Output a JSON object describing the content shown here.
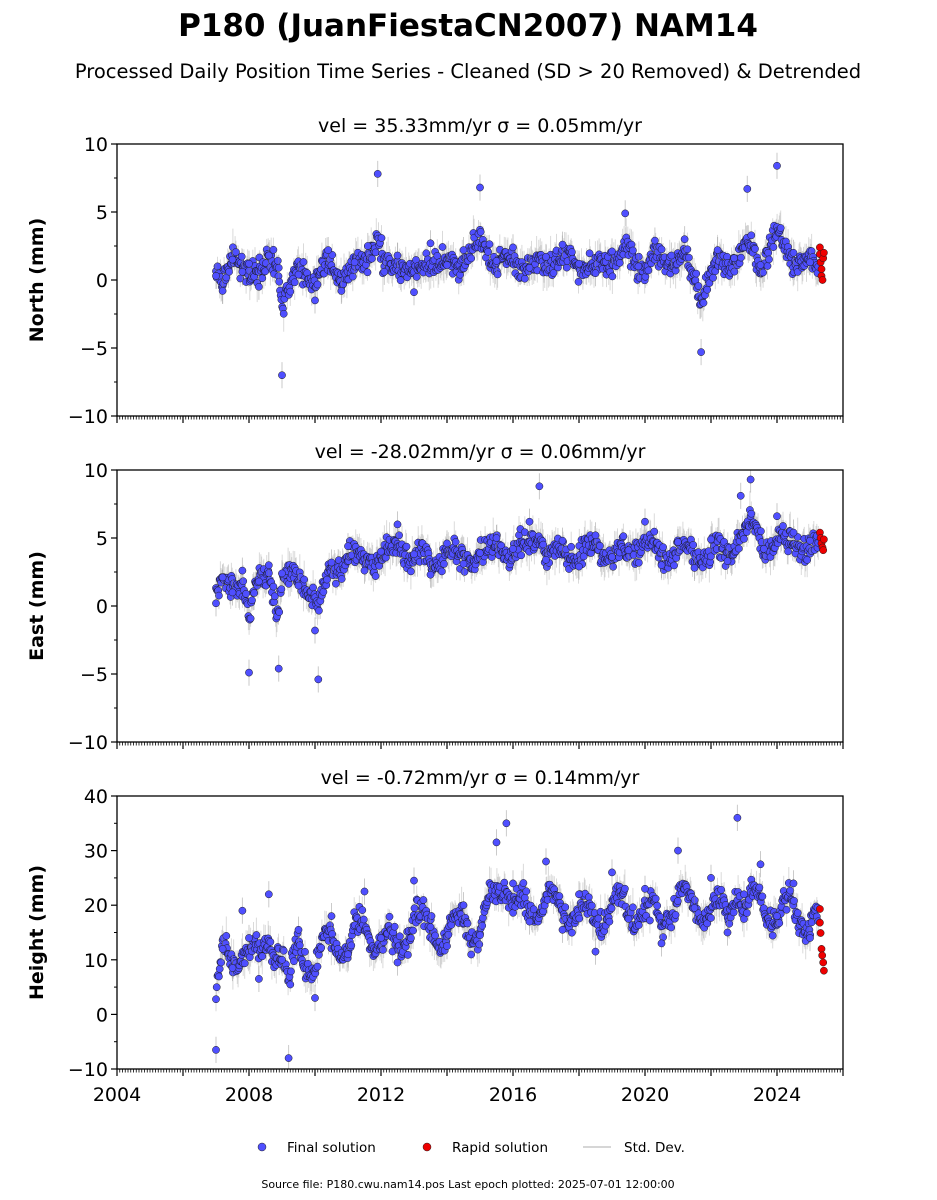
{
  "title": "P180 (JuanFiestaCN2007) NAM14",
  "subtitle": "Processed Daily Position Time Series - Cleaned (SD > 20 Removed) & Detrended",
  "legend": {
    "final": "Final solution",
    "rapid": "Rapid solution",
    "std": "Std. Dev.",
    "placement": "bottom-center"
  },
  "footer": "Source file: P180.cwu.nam14.pos  Last epoch plotted: 2025-07-01 12:00:00",
  "colors": {
    "final": "#4f4fff",
    "rapid": "#ee0000",
    "stddev": "#b5b5b5"
  },
  "chart_data": [
    {
      "type": "scatter",
      "component": "North",
      "title": "vel = 35.33mm/yr   σ = 0.05mm/yr",
      "ylabel": "North (mm)",
      "xlim": [
        2004,
        2026
      ],
      "ylim": [
        -10,
        10
      ],
      "yticks": [
        "10",
        "5",
        "0",
        "−5",
        "−10"
      ],
      "grid": false,
      "series": [
        {
          "name": "Final solution",
          "x": [
            2007.0,
            2007.2,
            2007.5,
            2007.8,
            2008.0,
            2008.3,
            2008.6,
            2008.9,
            2009.0,
            2009.5,
            2010.0,
            2010.4,
            2010.8,
            2011.2,
            2011.6,
            2011.9,
            2012.1,
            2012.5,
            2013.0,
            2013.5,
            2014.0,
            2014.5,
            2015.0,
            2015.5,
            2016.0,
            2016.5,
            2017.0,
            2017.5,
            2018.0,
            2018.5,
            2019.0,
            2019.4,
            2019.8,
            2020.3,
            2020.8,
            2021.2,
            2021.7,
            2022.2,
            2022.7,
            2023.1,
            2023.5,
            2024.0,
            2024.5,
            2025.0
          ],
          "y": [
            0.3,
            -0.8,
            1.5,
            0.6,
            1.2,
            -0.5,
            1.8,
            0.9,
            -7.0,
            0.4,
            -1.5,
            2.2,
            -0.8,
            1.3,
            2.5,
            7.8,
            0.6,
            1.8,
            -0.9,
            2.7,
            1.1,
            2.2,
            6.8,
            1.4,
            2.4,
            0.9,
            1.7,
            2.6,
            1.2,
            0.5,
            2.1,
            4.9,
            1.0,
            2.9,
            1.8,
            3.0,
            -5.3,
            2.2,
            1.6,
            6.7,
            1.1,
            8.4,
            2.0,
            1.3
          ]
        },
        {
          "name": "Rapid solution",
          "x": [
            2025.3,
            2025.3,
            2025.32,
            2025.35,
            2025.35,
            2025.38,
            2025.4,
            2025.42
          ],
          "y": [
            2.4,
            1.9,
            1.3,
            0.8,
            0.3,
            0.0,
            1.6,
            2.0
          ]
        }
      ]
    },
    {
      "type": "scatter",
      "component": "East",
      "title": "vel = -28.02mm/yr   σ = 0.06mm/yr",
      "ylabel": "East (mm)",
      "xlim": [
        2004,
        2026
      ],
      "ylim": [
        -10,
        10
      ],
      "yticks": [
        "10",
        "5",
        "0",
        "−5",
        "−10"
      ],
      "grid": false,
      "series": [
        {
          "name": "Final solution",
          "x": [
            2007.0,
            2007.2,
            2007.5,
            2007.8,
            2008.0,
            2008.3,
            2008.6,
            2008.9,
            2009.0,
            2009.5,
            2010.0,
            2010.1,
            2010.5,
            2011.0,
            2011.5,
            2012.0,
            2012.5,
            2013.0,
            2013.5,
            2014.0,
            2014.5,
            2015.0,
            2015.5,
            2016.0,
            2016.5,
            2016.8,
            2017.0,
            2017.5,
            2018.0,
            2018.5,
            2019.0,
            2019.5,
            2020.0,
            2020.5,
            2021.0,
            2021.5,
            2022.0,
            2022.5,
            2022.9,
            2023.2,
            2023.6,
            2024.0,
            2024.5,
            2025.0
          ],
          "y": [
            0.2,
            2.1,
            1.0,
            2.6,
            -4.9,
            1.8,
            3.0,
            -4.6,
            2.4,
            1.5,
            -1.8,
            -5.4,
            3.2,
            4.4,
            2.6,
            4.0,
            6.0,
            3.8,
            2.3,
            4.6,
            3.1,
            3.9,
            5.0,
            4.2,
            6.2,
            8.8,
            3.4,
            4.8,
            2.9,
            5.2,
            3.6,
            4.1,
            6.2,
            3.0,
            4.7,
            2.8,
            4.9,
            3.3,
            8.1,
            9.3,
            4.2,
            6.6,
            5.4,
            4.8
          ]
        },
        {
          "name": "Rapid solution",
          "x": [
            2025.3,
            2025.32,
            2025.35,
            2025.38,
            2025.4,
            2025.42
          ],
          "y": [
            5.4,
            5.0,
            4.6,
            4.3,
            4.1,
            4.9
          ]
        }
      ]
    },
    {
      "type": "scatter",
      "component": "Height",
      "title": "vel = -0.72mm/yr   σ = 0.14mm/yr",
      "ylabel": "Height (mm)",
      "xlim": [
        2004,
        2026
      ],
      "ylim": [
        -10,
        40
      ],
      "yticks": [
        "40",
        "30",
        "20",
        "10",
        "0",
        "−10"
      ],
      "xticks": [
        "2004",
        "2008",
        "2012",
        "2016",
        "2020",
        "2024"
      ],
      "grid": false,
      "series": [
        {
          "name": "Final solution",
          "x": [
            2007.0,
            2007.2,
            2007.5,
            2007.8,
            2008.0,
            2008.3,
            2008.6,
            2009.0,
            2009.2,
            2009.5,
            2010.0,
            2010.5,
            2011.0,
            2011.5,
            2012.0,
            2012.5,
            2013.0,
            2013.5,
            2014.0,
            2014.5,
            2015.0,
            2015.5,
            2015.8,
            2016.0,
            2016.5,
            2017.0,
            2017.5,
            2018.0,
            2018.5,
            2019.0,
            2019.5,
            2020.0,
            2020.5,
            2021.0,
            2021.5,
            2022.0,
            2022.5,
            2022.8,
            2023.0,
            2023.5,
            2024.0,
            2024.5,
            2025.0
          ],
          "y": [
            -6.5,
            12.0,
            8.5,
            19.0,
            14.0,
            6.5,
            22.0,
            10.0,
            -8.0,
            15.5,
            3.0,
            18.0,
            11.0,
            22.5,
            14.0,
            9.5,
            24.5,
            16.0,
            12.5,
            20.0,
            14.5,
            31.5,
            35.0,
            24.0,
            17.0,
            28.0,
            15.5,
            22.0,
            11.5,
            26.0,
            17.5,
            23.0,
            13.0,
            30.0,
            19.5,
            25.0,
            15.0,
            36.0,
            22.0,
            27.5,
            18.0,
            24.0,
            14.0
          ]
        },
        {
          "name": "Rapid solution",
          "x": [
            2025.3,
            2025.3,
            2025.32,
            2025.35,
            2025.37,
            2025.4,
            2025.42
          ],
          "y": [
            19.3,
            16.8,
            14.9,
            12.0,
            10.8,
            9.5,
            8.0
          ]
        }
      ]
    }
  ]
}
